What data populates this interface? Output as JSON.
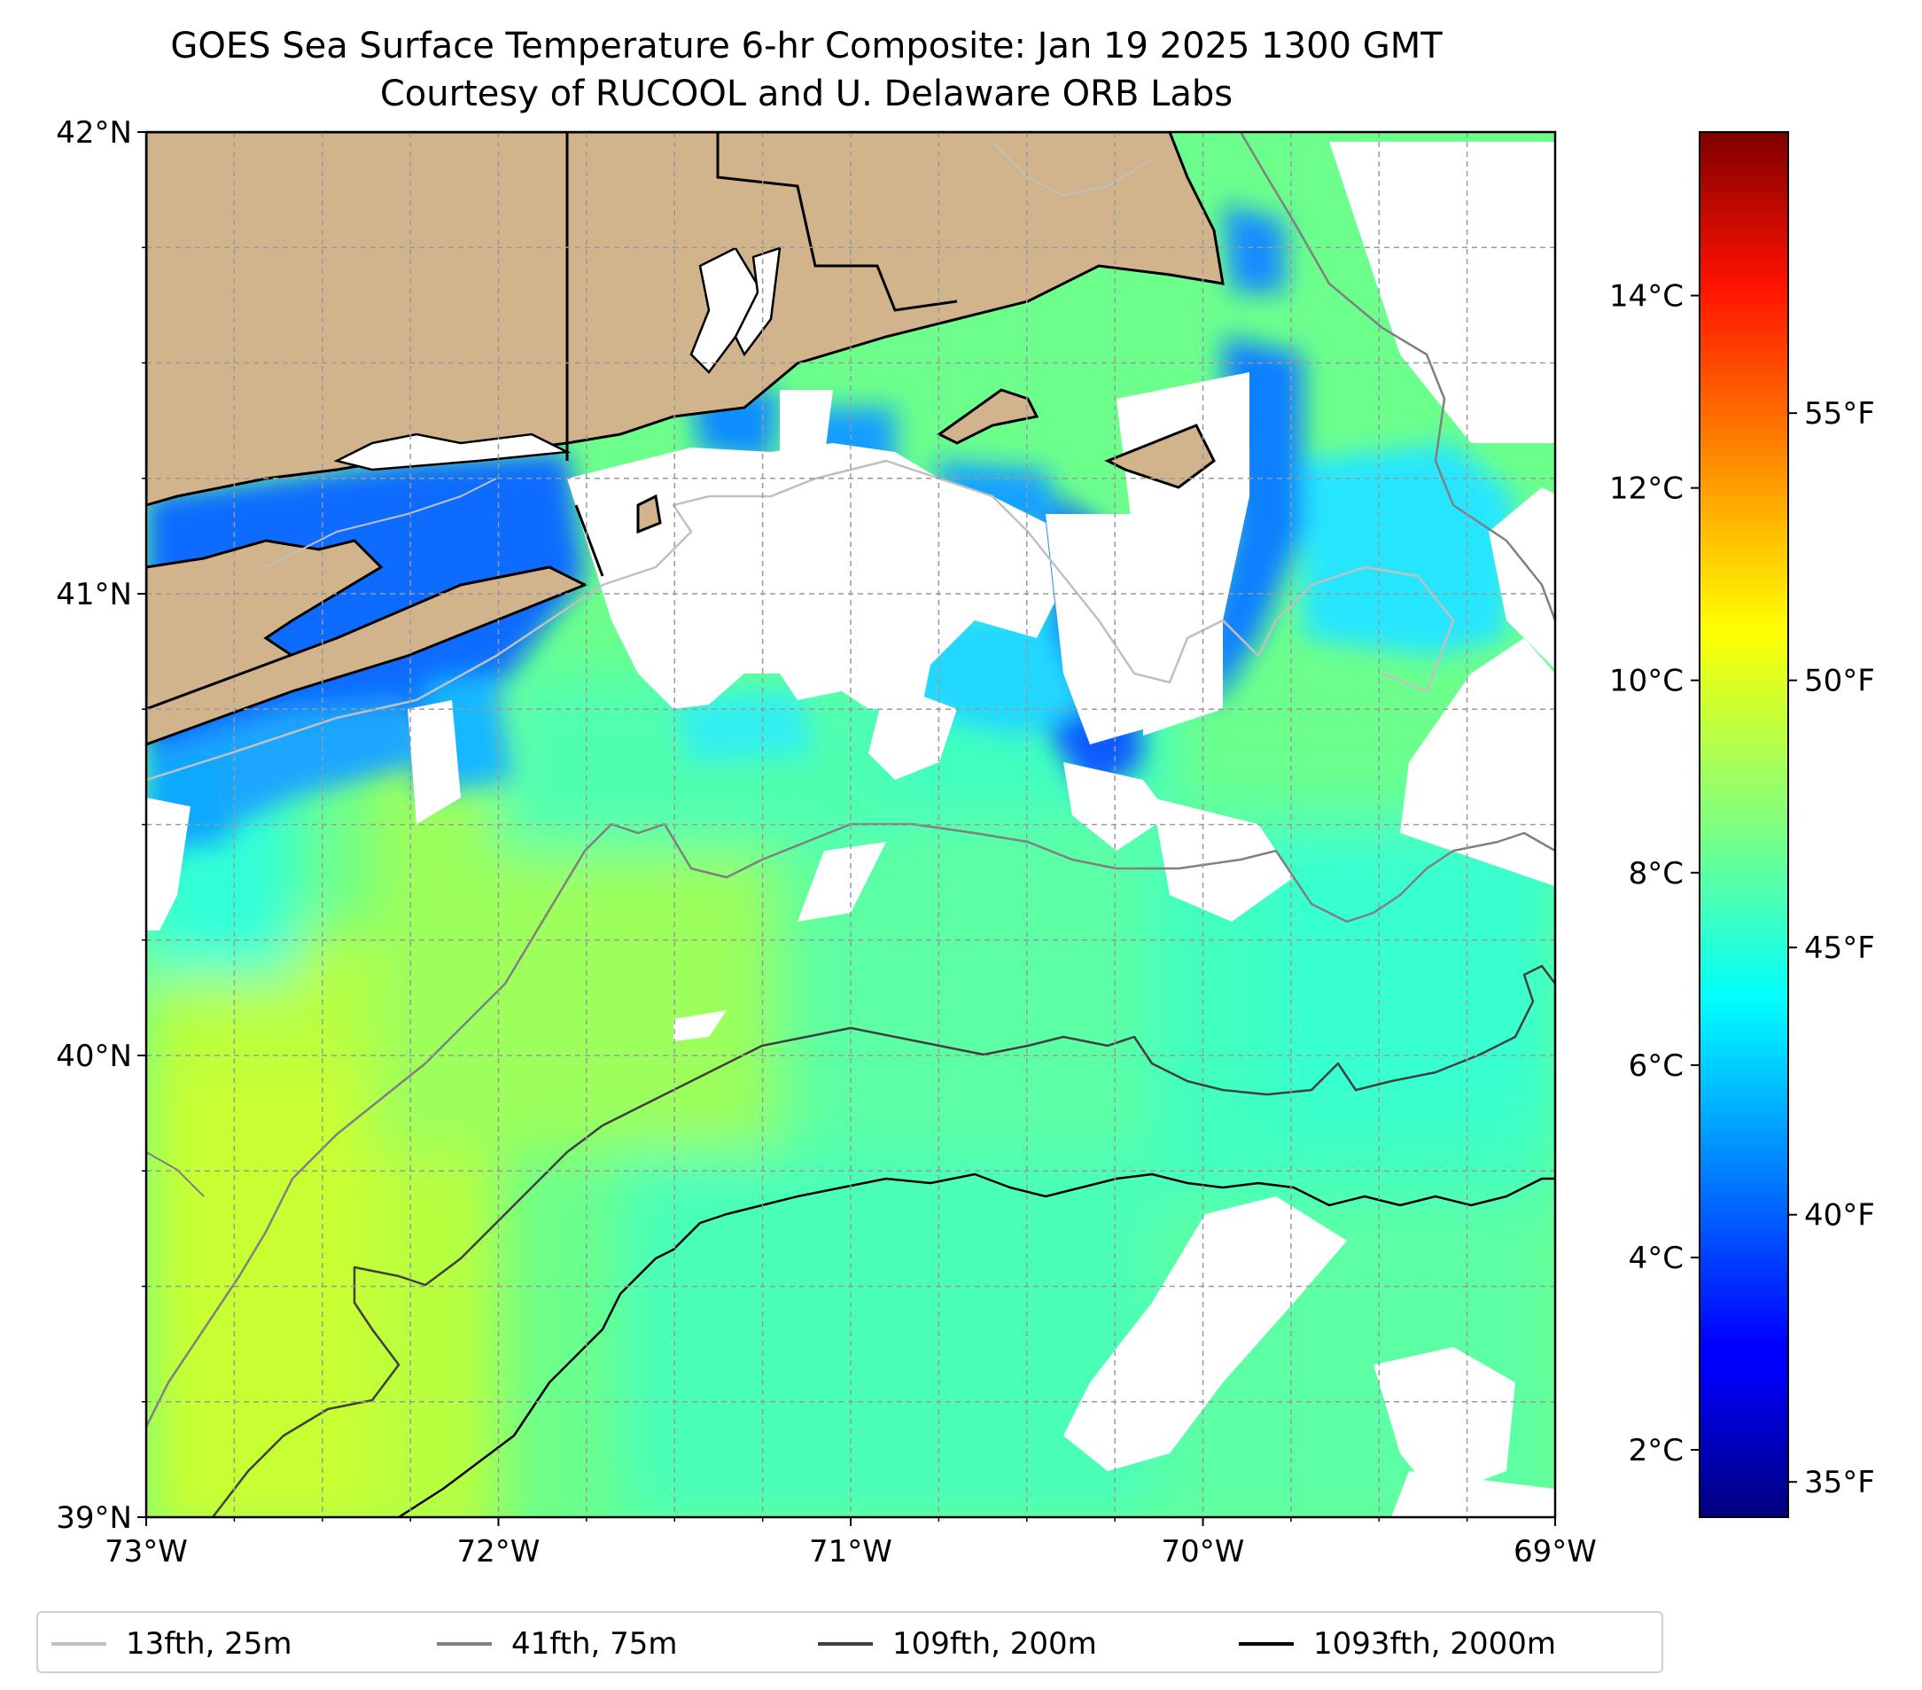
{
  "title": {
    "line1": "GOES Sea Surface Temperature 6-hr Composite: Jan 19 2025 1300 GMT",
    "line2": "Courtesy of RUCOOL and U. Delaware ORB Labs"
  },
  "map": {
    "lon_range": [
      -73,
      -69
    ],
    "lat_range": [
      39,
      42
    ],
    "lon_ticks": [
      {
        "value": -73,
        "label": "73°W"
      },
      {
        "value": -72,
        "label": "72°W"
      },
      {
        "value": -71,
        "label": "71°W"
      },
      {
        "value": -70,
        "label": "70°W"
      },
      {
        "value": -69,
        "label": "69°W"
      }
    ],
    "lat_ticks": [
      {
        "value": 42,
        "label": "42°N"
      },
      {
        "value": 41,
        "label": "41°N"
      },
      {
        "value": 40,
        "label": "40°N"
      },
      {
        "value": 39,
        "label": "39°N"
      }
    ],
    "gridlines": true,
    "land_color": "#d2b48c",
    "no_data_color": "#ffffff"
  },
  "colorbar": {
    "colormap": "jet",
    "range_c": [
      1.3,
      15.7
    ],
    "celsius_ticks": [
      {
        "value": 2,
        "label": "2°C"
      },
      {
        "value": 4,
        "label": "4°C"
      },
      {
        "value": 6,
        "label": "6°C"
      },
      {
        "value": 8,
        "label": "8°C"
      },
      {
        "value": 10,
        "label": "10°C"
      },
      {
        "value": 12,
        "label": "12°C"
      },
      {
        "value": 14,
        "label": "14°C"
      }
    ],
    "fahrenheit_ticks": [
      {
        "value": 35,
        "label": "35°F"
      },
      {
        "value": 40,
        "label": "40°F"
      },
      {
        "value": 45,
        "label": "45°F"
      },
      {
        "value": 50,
        "label": "50°F"
      },
      {
        "value": 55,
        "label": "55°F"
      }
    ]
  },
  "legend": {
    "placement": "bottom",
    "items": [
      {
        "label": "13fth, 25m",
        "color": "#c0c0c0"
      },
      {
        "label": "41fth, 75m",
        "color": "#808080"
      },
      {
        "label": "109fth, 200m",
        "color": "#404040"
      },
      {
        "label": "1093fth, 2000m",
        "color": "#000000"
      }
    ]
  }
}
